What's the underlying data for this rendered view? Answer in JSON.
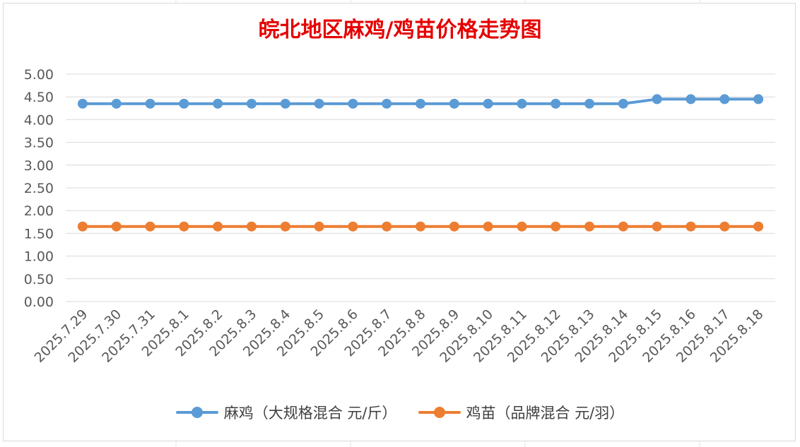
{
  "chart_data": {
    "type": "line",
    "title": "皖北地区麻鸡/鸡苗价格走势图",
    "categories": [
      "2025.7.29",
      "2025.7.30",
      "2025.7.31",
      "2025.8.1",
      "2025.8.2",
      "2025.8.3",
      "2025.8.4",
      "2025.8.5",
      "2025.8.6",
      "2025.8.7",
      "2025.8.8",
      "2025.8.9",
      "2025.8.10",
      "2025.8.11",
      "2025.8.12",
      "2025.8.13",
      "2025.8.14",
      "2025.8.15",
      "2025.8.16",
      "2025.8.17",
      "2025.8.18"
    ],
    "series": [
      {
        "name": "麻鸡（大规格混合 元/斤）",
        "color": "#5b9bd5",
        "values": [
          4.35,
          4.35,
          4.35,
          4.35,
          4.35,
          4.35,
          4.35,
          4.35,
          4.35,
          4.35,
          4.35,
          4.35,
          4.35,
          4.35,
          4.35,
          4.35,
          4.35,
          4.45,
          4.45,
          4.45,
          4.45
        ]
      },
      {
        "name": "鸡苗（品牌混合 元/羽）",
        "color": "#ed7d31",
        "values": [
          1.65,
          1.65,
          1.65,
          1.65,
          1.65,
          1.65,
          1.65,
          1.65,
          1.65,
          1.65,
          1.65,
          1.65,
          1.65,
          1.65,
          1.65,
          1.65,
          1.65,
          1.65,
          1.65,
          1.65,
          1.65
        ]
      }
    ],
    "ylim": [
      0,
      5
    ],
    "y_ticks": [
      "0.00",
      "0.50",
      "1.00",
      "1.50",
      "2.00",
      "2.50",
      "3.00",
      "3.50",
      "4.00",
      "4.50",
      "5.00"
    ],
    "xlabel": "",
    "ylabel": "",
    "grid": true,
    "legend_position": "bottom"
  }
}
